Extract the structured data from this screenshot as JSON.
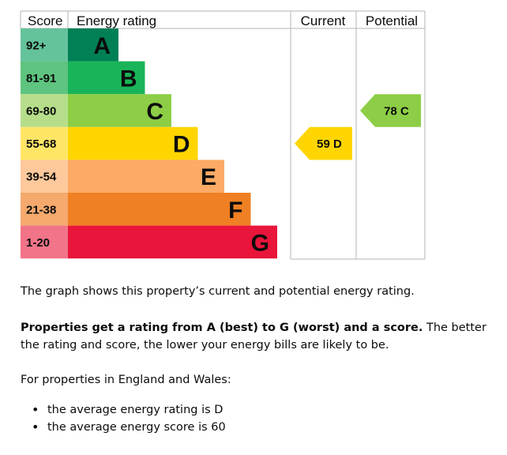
{
  "chart_data": {
    "type": "bar",
    "headers": {
      "score": "Score",
      "rating": "Energy rating",
      "current": "Current",
      "potential": "Potential"
    },
    "bands": [
      {
        "letter": "A",
        "range": "92+",
        "min": 92,
        "max": null,
        "color": "#008054",
        "label_bg": "#64c39b",
        "letter_color": "#0b0c0c"
      },
      {
        "letter": "B",
        "range": "81-91",
        "min": 81,
        "max": 91,
        "color": "#19b459",
        "label_bg": "#5ec47f",
        "letter_color": "#0b0c0c"
      },
      {
        "letter": "C",
        "range": "69-80",
        "min": 69,
        "max": 80,
        "color": "#8dce46",
        "label_bg": "#b6de8a",
        "letter_color": "#0b0c0c"
      },
      {
        "letter": "D",
        "range": "55-68",
        "min": 55,
        "max": 68,
        "color": "#ffd500",
        "label_bg": "#ffe566",
        "letter_color": "#0b0c0c"
      },
      {
        "letter": "E",
        "range": "39-54",
        "min": 39,
        "max": 54,
        "color": "#fcaa65",
        "label_bg": "#fdc99c",
        "letter_color": "#0b0c0c"
      },
      {
        "letter": "F",
        "range": "21-38",
        "min": 21,
        "max": 38,
        "color": "#ef8023",
        "label_bg": "#f5a96d",
        "letter_color": "#0b0c0c"
      },
      {
        "letter": "G",
        "range": "1-20",
        "min": 1,
        "max": 20,
        "color": "#e9153b",
        "label_bg": "#f27488",
        "letter_color": "#0b0c0c"
      }
    ],
    "current": {
      "score": 59,
      "band": "D",
      "label": "59 D",
      "color": "#ffd500"
    },
    "potential": {
      "score": 78,
      "band": "C",
      "label": "78 C",
      "color": "#8dce46"
    }
  },
  "text": {
    "intro": "The graph shows this property’s current and potential energy rating.",
    "explain_bold": "Properties get a rating from A (best) to G (worst) and a score.",
    "explain_rest": " The better the rating and score, the lower your energy bills are likely to be.",
    "region": "For properties in England and Wales:",
    "averages": [
      "the average energy rating is D",
      "the average energy score is 60"
    ]
  }
}
